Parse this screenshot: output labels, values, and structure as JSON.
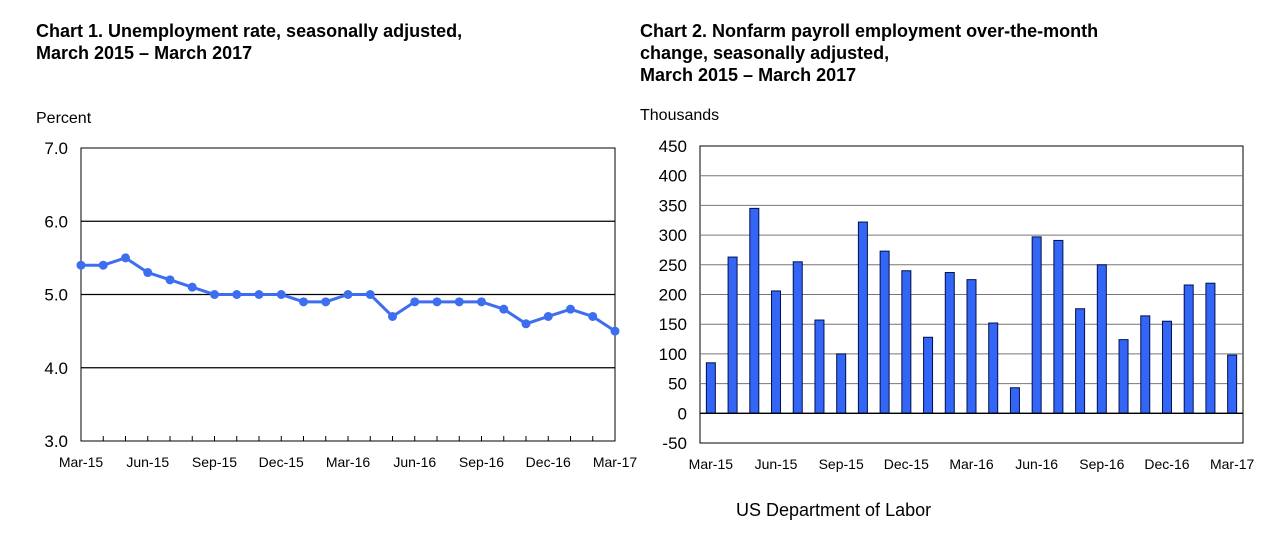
{
  "chart_data": [
    {
      "type": "line",
      "title": "Chart 1. Unemployment rate, seasonally adjusted,",
      "title_line2": "March 2015 – March 2017",
      "ylabel": "Percent",
      "ylim": [
        3.0,
        7.0
      ],
      "yticks": [
        "7.0",
        "6.0",
        "5.0",
        "4.0",
        "3.0"
      ],
      "ytick_values": [
        7,
        6,
        5,
        4,
        3
      ],
      "xtick_labels": [
        "Mar-15",
        "Jun-15",
        "Sep-15",
        "Dec-15",
        "Mar-16",
        "Jun-16",
        "Sep-16",
        "Dec-16",
        "Mar-17"
      ],
      "x": [
        "Mar-15",
        "Apr-15",
        "May-15",
        "Jun-15",
        "Jul-15",
        "Aug-15",
        "Sep-15",
        "Oct-15",
        "Nov-15",
        "Dec-15",
        "Jan-16",
        "Feb-16",
        "Mar-16",
        "Apr-16",
        "May-16",
        "Jun-16",
        "Jul-16",
        "Aug-16",
        "Sep-16",
        "Oct-16",
        "Nov-16",
        "Dec-16",
        "Jan-17",
        "Feb-17",
        "Mar-17"
      ],
      "values": [
        5.4,
        5.4,
        5.5,
        5.3,
        5.2,
        5.1,
        5.0,
        5.0,
        5.0,
        5.0,
        4.9,
        4.9,
        5.0,
        5.0,
        4.7,
        4.9,
        4.9,
        4.9,
        4.9,
        4.8,
        4.6,
        4.7,
        4.8,
        4.7,
        4.5
      ],
      "grid": true,
      "color": "#3d6ef0"
    },
    {
      "type": "bar",
      "title": "Chart 2. Nonfarm payroll employment over-the-month",
      "title_line2": "change, seasonally adjusted,",
      "title_line3": "March 2015 – March 2017",
      "ylabel": "Thousands",
      "ylim": [
        -50,
        450
      ],
      "yticks": [
        "450",
        "400",
        "350",
        "300",
        "250",
        "200",
        "150",
        "100",
        "50",
        "0",
        "-50"
      ],
      "ytick_values": [
        450,
        400,
        350,
        300,
        250,
        200,
        150,
        100,
        50,
        0,
        -50
      ],
      "xtick_labels": [
        "Mar-15",
        "Jun-15",
        "Sep-15",
        "Dec-15",
        "Mar-16",
        "Jun-16",
        "Sep-16",
        "Dec-16",
        "Mar-17"
      ],
      "x": [
        "Mar-15",
        "Apr-15",
        "May-15",
        "Jun-15",
        "Jul-15",
        "Aug-15",
        "Sep-15",
        "Oct-15",
        "Nov-15",
        "Dec-15",
        "Jan-16",
        "Feb-16",
        "Mar-16",
        "Apr-16",
        "May-16",
        "Jun-16",
        "Jul-16",
        "Aug-16",
        "Sep-16",
        "Oct-16",
        "Nov-16",
        "Dec-16",
        "Jan-17",
        "Feb-17",
        "Mar-17"
      ],
      "values": [
        85,
        263,
        345,
        206,
        255,
        157,
        100,
        322,
        273,
        240,
        128,
        237,
        225,
        152,
        43,
        297,
        291,
        176,
        250,
        124,
        164,
        155,
        216,
        219,
        98
      ],
      "grid": true,
      "color": "#3366f5"
    }
  ],
  "source": "US Department of Labor"
}
